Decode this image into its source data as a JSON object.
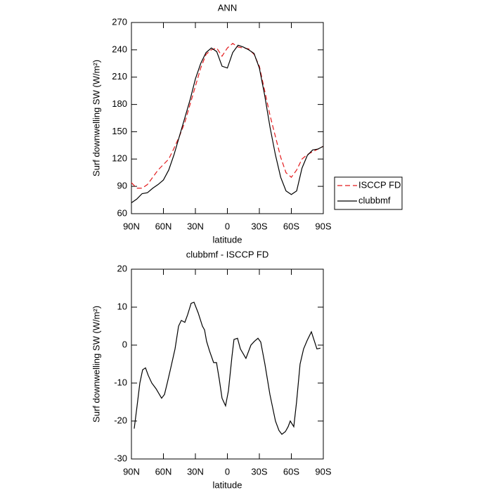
{
  "chart_data": [
    {
      "type": "line",
      "title": "ANN",
      "x_label": "latitude",
      "y_label": "Surf downwelling SW (W/m²)",
      "x": [
        90,
        85,
        80,
        75,
        70,
        65,
        60,
        55,
        50,
        45,
        40,
        35,
        30,
        25,
        20,
        15,
        10,
        5,
        0,
        -5,
        -10,
        -15,
        -20,
        -25,
        -30,
        -35,
        -40,
        -45,
        -50,
        -55,
        -60,
        -65,
        -70,
        -75,
        -80,
        -85,
        -90
      ],
      "series": [
        {
          "name": "ISCCP FD",
          "color": "#e31a1c",
          "linestyle": "dashed",
          "values": [
            94,
            88,
            88,
            92,
            100,
            108,
            114,
            120,
            132,
            145,
            160,
            180,
            200,
            220,
            235,
            240,
            242,
            233,
            242,
            247,
            243,
            242,
            241,
            235,
            222,
            195,
            168,
            145,
            122,
            105,
            100,
            108,
            120,
            125,
            128,
            131,
            134
          ]
        },
        {
          "name": "clubbmf",
          "color": "#000000",
          "linestyle": "solid",
          "values": [
            72,
            76,
            82,
            83,
            88,
            92,
            97,
            108,
            125,
            145,
            165,
            185,
            208,
            225,
            237,
            242,
            238,
            222,
            220,
            237,
            245,
            243,
            240,
            236,
            220,
            190,
            155,
            125,
            100,
            85,
            81,
            85,
            110,
            124,
            130,
            131,
            134
          ]
        }
      ],
      "xlim": [
        90,
        -90
      ],
      "xticks": [
        {
          "value": 90,
          "label": "90N"
        },
        {
          "value": 60,
          "label": "60N"
        },
        {
          "value": 30,
          "label": "30N"
        },
        0,
        {
          "value": -30,
          "label": "30S"
        },
        {
          "value": -60,
          "label": "60S"
        },
        {
          "value": -90,
          "label": "90S"
        }
      ],
      "ylim": [
        60,
        270
      ],
      "yticks": [
        60,
        90,
        120,
        150,
        180,
        210,
        240,
        270
      ],
      "legend": "right"
    },
    {
      "type": "line",
      "title": "clubbmf - ISCCP FD",
      "x_label": "latitude",
      "y_label": "Surf downwelling SW (W/m²)",
      "x": [
        87.4,
        84.7,
        82.1,
        79.5,
        76.8,
        74.2,
        70.9,
        66.9,
        61.7,
        59,
        56.4,
        53.1,
        49.1,
        45.8,
        43.2,
        39.9,
        37.3,
        34,
        31.3,
        27.4,
        23.4,
        21.4,
        19.5,
        16.8,
        12.9,
        10.2,
        7.6,
        5,
        1.7,
        -1,
        -4.3,
        -6.2,
        -9.5,
        -12.2,
        -17.4,
        -22.1,
        -25.4,
        -28.7,
        -31.3,
        -35.2,
        -39.9,
        -45.1,
        -48.4,
        -51.1,
        -54.4,
        -57,
        -59,
        -62.3,
        -64.9,
        -68.2,
        -71.5,
        -74.8,
        -78.8,
        -84,
        -87.3
      ],
      "series": [
        {
          "color": "#000000",
          "linestyle": "solid",
          "values": [
            -22,
            -16,
            -10,
            -6.5,
            -6,
            -8,
            -10,
            -11.5,
            -14,
            -13,
            -10,
            -6,
            -1,
            5,
            6.5,
            6,
            8,
            11,
            11.3,
            8.5,
            5,
            4,
            1,
            -1.5,
            -4.6,
            -4.6,
            -9,
            -14,
            -16,
            -12,
            -3,
            1.5,
            1.8,
            -1,
            -3.5,
            0,
            1,
            1.8,
            0.8,
            -5,
            -13,
            -20,
            -22.5,
            -23.5,
            -22.8,
            -21.5,
            -20,
            -21.5,
            -15,
            -5,
            -1,
            1.2,
            3.5,
            -1,
            -0.8
          ]
        }
      ],
      "xlim": [
        90,
        -90
      ],
      "xticks": [
        {
          "value": 90,
          "label": "90N"
        },
        {
          "value": 60,
          "label": "60N"
        },
        {
          "value": 30,
          "label": "30N"
        },
        0,
        {
          "value": -30,
          "label": "30S"
        },
        {
          "value": -60,
          "label": "60S"
        },
        {
          "value": -90,
          "label": "90S"
        }
      ],
      "ylim": [
        -30,
        20
      ],
      "yticks": [
        -30,
        -20,
        -10,
        0,
        10,
        20
      ]
    }
  ]
}
